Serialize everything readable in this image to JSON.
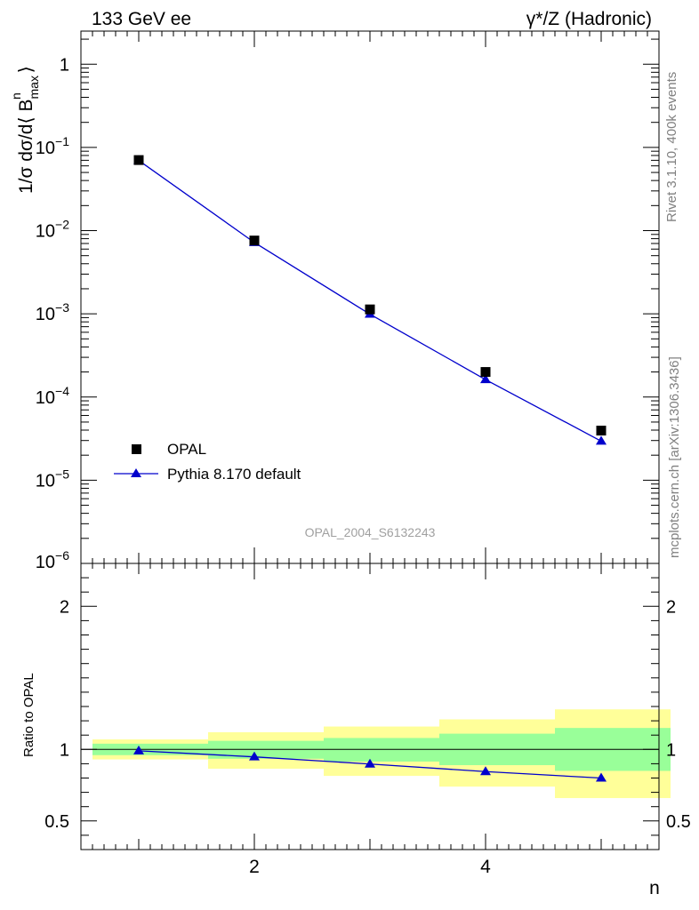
{
  "header": {
    "process": "133 GeV ee",
    "channel": "γ*/Z (Hadronic)"
  },
  "side": {
    "rivet": "Rivet 3.1.10,  400k events",
    "source": "mcplots.cern.ch [arXiv:1306.3436]"
  },
  "watermark": "OPAL_2004_S6132243",
  "chart_data": [
    {
      "type": "scatter",
      "panel": "main",
      "yscale": "log",
      "ylabel": "1/σ dσ/d⟨ B^n_max ⟩",
      "xlabel": "n",
      "xlim": [
        0.5,
        5.5
      ],
      "ylim": [
        1e-06,
        2.5
      ],
      "ytick_labels": [
        "1",
        "10^−1",
        "10^−2",
        "10^−3",
        "10^−4",
        "10^−5",
        "10^−6"
      ],
      "legend_position": "lower-left",
      "series": [
        {
          "name": "OPAL",
          "marker": "square",
          "color": "#000000",
          "x": [
            1,
            2,
            3,
            4,
            5
          ],
          "y": [
            0.0705,
            0.0076,
            0.00113,
            0.0002,
            3.95e-05
          ]
        },
        {
          "name": "Pythia 8.170 default",
          "marker": "triangle",
          "color": "#0000cc",
          "x": [
            1,
            2,
            3,
            4,
            5
          ],
          "y": [
            0.0697,
            0.0072,
            0.00099,
            0.000162,
            2.95e-05
          ]
        }
      ]
    },
    {
      "type": "line",
      "panel": "ratio",
      "ylabel": "Ratio to OPAL",
      "xlabel": "n",
      "xlim": [
        0.5,
        5.5
      ],
      "ylim": [
        0.3,
        2.3
      ],
      "ytick_labels": [
        "0.5",
        "1",
        "2"
      ],
      "xtick_labels": [
        "2",
        "4"
      ],
      "reference_line": 1.0,
      "bands": [
        {
          "name": "stat uncertainty",
          "color": "#99ff99",
          "bins": [
            [
              0.5,
              1.5
            ],
            [
              1.5,
              2.5
            ],
            [
              2.5,
              3.5
            ],
            [
              3.5,
              4.5
            ],
            [
              4.5,
              5.5
            ]
          ],
          "low": [
            0.96,
            0.935,
            0.915,
            0.89,
            0.85
          ],
          "high": [
            1.04,
            1.06,
            1.08,
            1.11,
            1.15
          ]
        },
        {
          "name": "total uncertainty",
          "color": "#ffff99",
          "bins": [
            [
              0.5,
              1.5
            ],
            [
              1.5,
              2.5
            ],
            [
              2.5,
              3.5
            ],
            [
              3.5,
              4.5
            ],
            [
              4.5,
              5.5
            ]
          ],
          "low": [
            0.93,
            0.865,
            0.815,
            0.74,
            0.66
          ],
          "high": [
            1.07,
            1.12,
            1.16,
            1.21,
            1.28
          ]
        }
      ],
      "series": [
        {
          "name": "Pythia 8.170 default",
          "marker": "triangle",
          "color": "#0000cc",
          "x": [
            1,
            2,
            3,
            4,
            5
          ],
          "y": [
            0.99,
            0.948,
            0.898,
            0.845,
            0.8
          ]
        }
      ]
    }
  ]
}
